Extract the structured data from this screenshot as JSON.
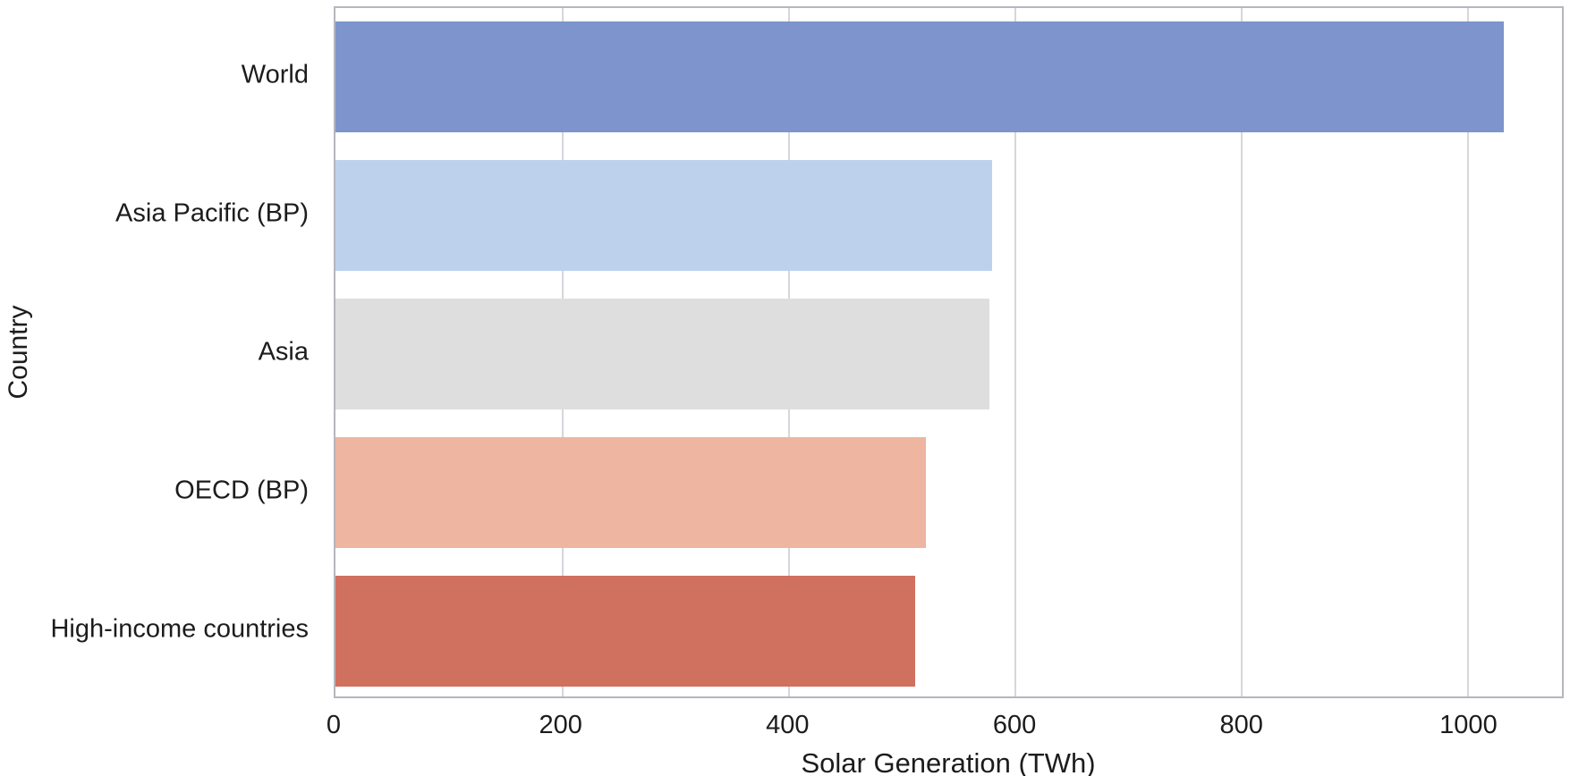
{
  "figure": {
    "background": "#ffffff",
    "frame_color": "#b6b6be",
    "grid_color": "#d6d6dc",
    "text_color": "#1c1c1c"
  },
  "chart_data": {
    "type": "bar",
    "orientation": "horizontal",
    "title": "",
    "xlabel": "Solar Generation (TWh)",
    "ylabel": "Country",
    "categories": [
      "World",
      "Asia Pacific (BP)",
      "Asia",
      "OECD (BP)",
      "High-income countries"
    ],
    "values": [
      1033,
      580,
      578,
      522,
      512
    ],
    "bar_colors": [
      "#7d94cd",
      "#bdd1ed",
      "#dedede",
      "#eeb5a0",
      "#d0705e"
    ],
    "xlim": [
      0,
      1084
    ],
    "xticks": [
      0,
      200,
      400,
      600,
      800,
      1000
    ],
    "grid": "vertical gridlines at x ticks, behind bars",
    "legend": "none",
    "bar_rel_height": 0.8
  }
}
